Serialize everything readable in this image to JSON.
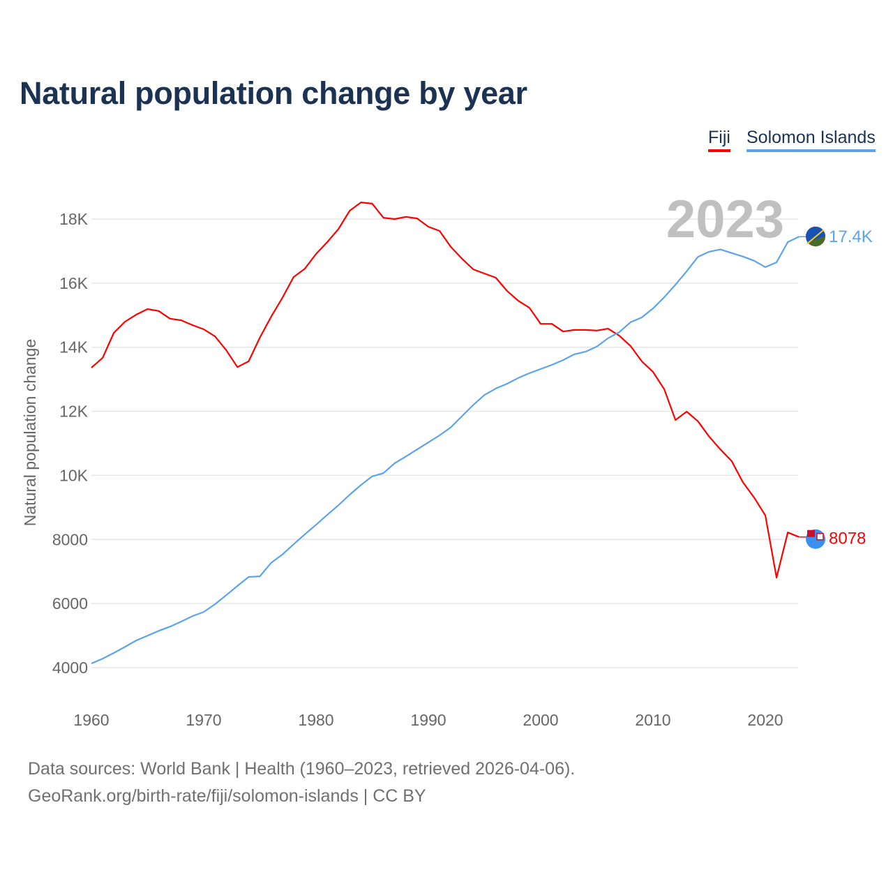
{
  "title": "Natural population change by year",
  "legend": [
    {
      "name": "Fiji",
      "color": "#ff0000"
    },
    {
      "name": "Solomon Islands",
      "color": "#5ba3ec"
    }
  ],
  "year_label": "2023",
  "end_labels": {
    "fiji": "8078",
    "solomon": "17.4K"
  },
  "sources": {
    "line1": "Data sources: World Bank | Health (1960–2023, retrieved 2026-04-06).",
    "line2": "GeoRank.org/birth-rate/fiji/solomon-islands | CC BY"
  },
  "chart_data": {
    "type": "line",
    "title": "Natural population change by year",
    "xlabel": "",
    "ylabel": "Natural population change",
    "xlim": [
      1960,
      2023
    ],
    "ylim": [
      4000,
      18000
    ],
    "grid": true,
    "legend_position": "top-right",
    "x_ticks": [
      1960,
      1970,
      1980,
      1990,
      2000,
      2010,
      2020
    ],
    "x_tick_labels": [
      "1960",
      "1970",
      "1980",
      "1990",
      "2000",
      "2010",
      "2020"
    ],
    "y_ticks": [
      4000,
      6000,
      8000,
      10000,
      12000,
      14000,
      16000,
      18000
    ],
    "y_tick_labels": [
      "4000",
      "6000",
      "8000",
      "10K",
      "12K",
      "14K",
      "16K",
      "18K"
    ],
    "x": [
      1960,
      1961,
      1962,
      1963,
      1964,
      1965,
      1966,
      1967,
      1968,
      1969,
      1970,
      1971,
      1972,
      1973,
      1974,
      1975,
      1976,
      1977,
      1978,
      1979,
      1980,
      1981,
      1982,
      1983,
      1984,
      1985,
      1986,
      1987,
      1988,
      1989,
      1990,
      1991,
      1992,
      1993,
      1994,
      1995,
      1996,
      1997,
      1998,
      1999,
      2000,
      2001,
      2002,
      2003,
      2004,
      2005,
      2006,
      2007,
      2008,
      2009,
      2010,
      2011,
      2012,
      2013,
      2014,
      2015,
      2016,
      2017,
      2018,
      2019,
      2020,
      2021,
      2022,
      2023
    ],
    "series": [
      {
        "name": "Fiji",
        "color": "#ff0000",
        "values": [
          13360,
          13670,
          14450,
          14800,
          15020,
          15190,
          15130,
          14890,
          14840,
          14690,
          14560,
          14340,
          13910,
          13380,
          13560,
          14300,
          14950,
          15540,
          16190,
          16450,
          16910,
          17280,
          17690,
          18260,
          18520,
          18480,
          18040,
          18000,
          18070,
          18020,
          17760,
          17630,
          17130,
          16760,
          16430,
          16300,
          16170,
          15760,
          15450,
          15230,
          14730,
          14730,
          14490,
          14540,
          14540,
          14520,
          14580,
          14360,
          14040,
          13560,
          13230,
          12690,
          11730,
          11990,
          11690,
          11210,
          10810,
          10450,
          9790,
          9310,
          8750,
          6810,
          8220,
          8078
        ]
      },
      {
        "name": "Solomon Islands",
        "color": "#5ba3ec",
        "values": [
          4130,
          4280,
          4460,
          4650,
          4850,
          5000,
          5150,
          5280,
          5440,
          5610,
          5740,
          5980,
          6260,
          6550,
          6830,
          6850,
          7270,
          7530,
          7850,
          8160,
          8460,
          8770,
          9070,
          9400,
          9700,
          9970,
          10070,
          10380,
          10590,
          10810,
          11030,
          11250,
          11500,
          11850,
          12200,
          12510,
          12710,
          12860,
          13040,
          13190,
          13320,
          13450,
          13600,
          13780,
          13860,
          14020,
          14280,
          14470,
          14780,
          14930,
          15210,
          15560,
          15950,
          16370,
          16820,
          16980,
          17050,
          16940,
          16830,
          16700,
          16500,
          16650,
          17280,
          17450
        ]
      }
    ]
  }
}
